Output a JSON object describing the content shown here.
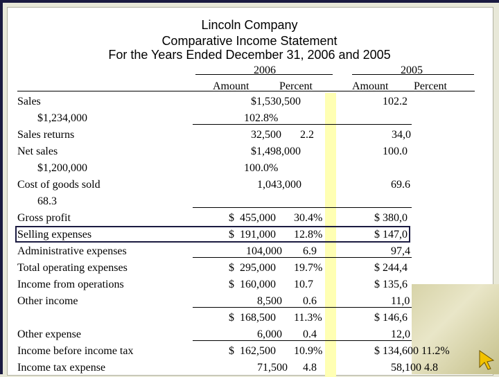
{
  "header": {
    "company": "Lincoln Company",
    "statement": "Comparative Income Statement",
    "period": "For the Years Ended December 31, 2006 and 2005"
  },
  "columns": {
    "year_2006": "2006",
    "year_2005": "2005",
    "amount_2006": "Amount",
    "percent_2006": "Percent",
    "amount_2005": "Amount",
    "percent_2005": "Percent"
  },
  "rows": {
    "sales": {
      "label": "Sales",
      "amount_2005_detail": "$1,234,000",
      "amount_2006": "$1,530,500",
      "percent_2006": "102.8%",
      "percent_2005": "102.2"
    },
    "sales_returns": {
      "label": "Sales returns",
      "amount_2006": "32,500",
      "percent_2006": "2.2",
      "amount_2005": "34,0"
    },
    "net_sales": {
      "label": "Net sales",
      "amount_2005_detail": "$1,200,000",
      "amount_2006": "$1,498,000",
      "percent_2006": "100.0%",
      "amount_2005": "100.0"
    },
    "cost_of_goods_sold": {
      "label": "Cost of goods sold",
      "percent_2005_detail": "68.3",
      "amount_2006": "1,043,000",
      "amount_2005": "69.6"
    },
    "gross_profit": {
      "label": "Gross profit",
      "amount_2006": "$  455,000",
      "percent_2006": "30.4%",
      "amount_2005": "$ 380,0"
    },
    "selling_expenses": {
      "label": "Selling expenses",
      "amount_2006": "$  191,000",
      "percent_2006": "12.8%",
      "amount_2005": "$ 147,0"
    },
    "administrative_expenses": {
      "label": "Administrative expenses",
      "amount_2006": "104,000",
      "percent_2006": "6.9",
      "amount_2005": "97,4"
    },
    "total_operating_expenses": {
      "label": "Total operating expenses",
      "amount_2006": "$  295,000",
      "percent_2006": "19.7%",
      "amount_2005": "$ 244,4"
    },
    "income_from_operations": {
      "label": "Income from operations",
      "amount_2006": "$  160,000",
      "percent_2006": "10.7",
      "amount_2005": "$ 135,6"
    },
    "other_income": {
      "label": "Other income",
      "amount_2006": "8,500",
      "percent_2006": "0.6",
      "amount_2005": "11,0"
    },
    "subtotal": {
      "amount_2006": "$  168,500",
      "percent_2006": "11.3%",
      "amount_2005": "$ 146,6"
    },
    "other_expense": {
      "label": "Other expense",
      "amount_2006": "6,000",
      "percent_2006": "0.4",
      "amount_2005": "12,0"
    },
    "income_before_tax": {
      "label": "Income before income tax",
      "amount_2006": "$  162,500",
      "percent_2006": "10.9%",
      "amount_2005": "$ 134,600 11.2%"
    },
    "income_tax_expense": {
      "label": "Income tax expense",
      "amount_2006": "71,500",
      "percent_2006": "4.8",
      "amount_2005": "58,100 4.8"
    }
  },
  "colors": {
    "highlight": "#ffffb3",
    "frame": "#1a1a40"
  },
  "icons": [
    "arrow-cursor-icon"
  ]
}
